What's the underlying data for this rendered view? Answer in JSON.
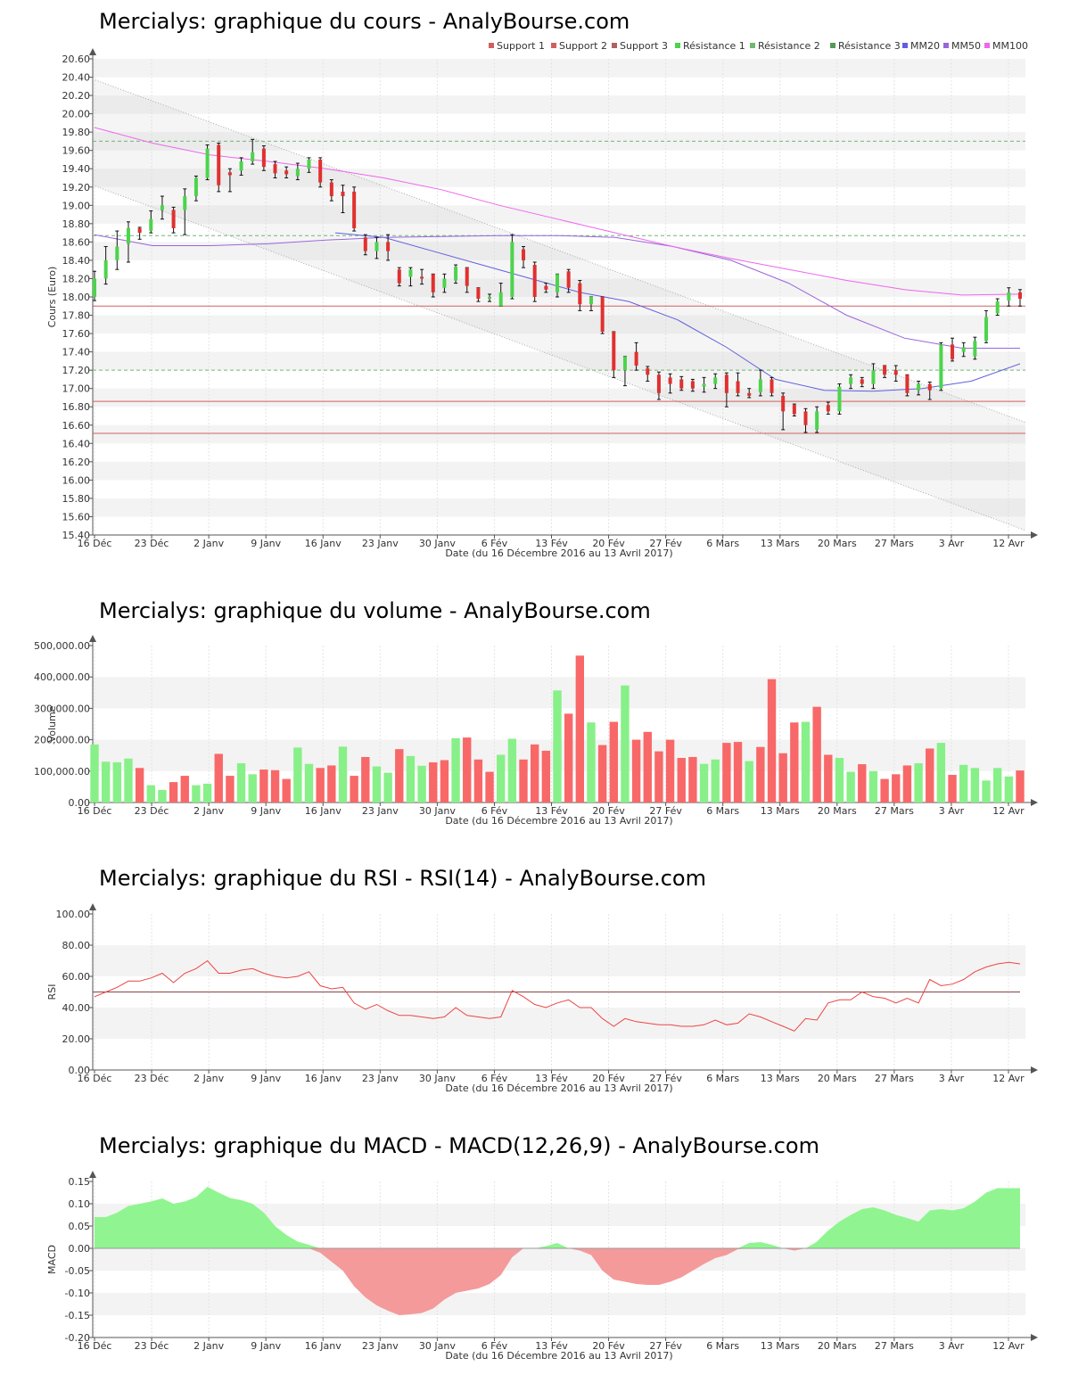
{
  "titles": {
    "price": "Mercialys: graphique du cours - AnalyBourse.com",
    "volume": "Mercialys: graphique du volume - AnalyBourse.com",
    "rsi": "Mercialys: graphique du RSI - RSI(14) - AnalyBourse.com",
    "macd": "Mercialys: graphique du MACD - MACD(12,26,9) - AnalyBourse.com"
  },
  "xlabel": "Date (du 16 Décembre 2016 au 13 Avril 2017)",
  "xticks": [
    "16 Déc",
    "23 Déc",
    "2 Janv",
    "9 Janv",
    "16 Janv",
    "23 Janv",
    "30 Janv",
    "6 Fév",
    "13 Fév",
    "20 Fév",
    "27 Fév",
    "6 Mars",
    "13 Mars",
    "20 Mars",
    "27 Mars",
    "3 Avr",
    "12 Avr"
  ],
  "colors": {
    "up": "#4cd44c",
    "down": "#e03030",
    "vol_up": "#88f088",
    "vol_down": "#f86868",
    "support": "#d06060",
    "resistance": "#70b870",
    "mm20": "#6060e0",
    "mm50": "#9966dd",
    "mm100": "#ee66ee",
    "rsi": "#ee4444",
    "macd_pos": "#90f590",
    "macd_neg": "#f49a9a"
  },
  "chart_data": [
    {
      "id": "price",
      "type": "candlestick",
      "title": "Mercialys: graphique du cours - AnalyBourse.com",
      "ylabel": "Cours (Euro)",
      "xlabel": "Date (du 16 Décembre 2016 au 13 Avril 2017)",
      "ylim": [
        15.4,
        20.6
      ],
      "yticks": [
        "15.40",
        "15.60",
        "15.80",
        "16.00",
        "16.20",
        "16.40",
        "16.60",
        "16.80",
        "17.00",
        "17.20",
        "17.40",
        "17.60",
        "17.80",
        "18.00",
        "18.20",
        "18.40",
        "18.60",
        "18.80",
        "19.00",
        "19.20",
        "19.40",
        "19.60",
        "19.80",
        "20.00",
        "20.20",
        "20.40",
        "20.60"
      ],
      "legend": [
        "Support 1",
        "Support 2",
        "Support 3",
        "Résistance 1",
        "Résistance 2",
        "Résistance 3",
        "MM20",
        "MM50",
        "MM100"
      ],
      "legend_position": "top-right",
      "levels": {
        "support": [
          17.9,
          16.86,
          16.51
        ],
        "resistance": [
          17.2,
          18.67,
          19.7
        ]
      },
      "channel": {
        "upper": [
          20.38,
          16.63
        ],
        "lower": [
          19.22,
          15.45
        ]
      },
      "candles": [
        [
          18.0,
          18.2,
          18.28,
          17.96
        ],
        [
          18.2,
          18.4,
          18.55,
          18.14
        ],
        [
          18.4,
          18.55,
          18.72,
          18.3
        ],
        [
          18.58,
          18.75,
          18.82,
          18.38
        ],
        [
          18.75,
          18.7,
          18.76,
          18.63
        ],
        [
          18.72,
          18.85,
          18.94,
          18.7
        ],
        [
          18.95,
          19.0,
          19.1,
          18.85
        ],
        [
          18.95,
          18.75,
          18.98,
          18.7
        ],
        [
          18.95,
          19.1,
          19.18,
          18.68
        ],
        [
          19.1,
          19.3,
          19.32,
          19.05
        ],
        [
          19.3,
          19.62,
          19.66,
          19.28
        ],
        [
          19.66,
          19.22,
          19.68,
          19.15
        ],
        [
          19.36,
          19.33,
          19.4,
          19.15
        ],
        [
          19.38,
          19.48,
          19.52,
          19.33
        ],
        [
          19.48,
          19.58,
          19.72,
          19.45
        ],
        [
          19.62,
          19.42,
          19.65,
          19.38
        ],
        [
          19.45,
          19.35,
          19.48,
          19.3
        ],
        [
          19.38,
          19.34,
          19.42,
          19.3
        ],
        [
          19.32,
          19.4,
          19.46,
          19.28
        ],
        [
          19.4,
          19.5,
          19.52,
          19.36
        ],
        [
          19.5,
          19.25,
          19.52,
          19.2
        ],
        [
          19.25,
          19.1,
          19.28,
          19.05
        ],
        [
          19.15,
          19.1,
          19.22,
          18.92
        ],
        [
          19.15,
          18.75,
          19.2,
          18.72
        ],
        [
          18.65,
          18.5,
          18.68,
          18.46
        ],
        [
          18.5,
          18.6,
          18.65,
          18.42
        ],
        [
          18.6,
          18.5,
          18.68,
          18.4
        ],
        [
          18.3,
          18.15,
          18.32,
          18.12
        ],
        [
          18.22,
          18.3,
          18.32,
          18.12
        ],
        [
          18.22,
          18.2,
          18.3,
          18.14
        ],
        [
          18.25,
          18.05,
          18.25,
          18.0
        ],
        [
          18.1,
          18.2,
          18.25,
          18.05
        ],
        [
          18.18,
          18.33,
          18.35,
          18.15
        ],
        [
          18.32,
          18.12,
          18.32,
          18.05
        ],
        [
          18.1,
          17.98,
          18.1,
          17.95
        ],
        [
          17.98,
          18.0,
          18.03,
          17.95
        ],
        [
          17.9,
          18.05,
          18.15,
          17.9
        ],
        [
          18.0,
          18.6,
          18.68,
          17.98
        ],
        [
          18.52,
          18.4,
          18.55,
          18.32
        ],
        [
          18.35,
          18.0,
          18.38,
          17.95
        ],
        [
          18.12,
          18.08,
          18.15,
          18.05
        ],
        [
          18.05,
          18.25,
          18.25,
          18.0
        ],
        [
          18.28,
          18.1,
          18.3,
          18.05
        ],
        [
          18.15,
          17.92,
          18.18,
          17.85
        ],
        [
          17.92,
          18.0,
          18.0,
          17.85
        ],
        [
          18.0,
          17.62,
          18.0,
          17.6
        ],
        [
          17.62,
          17.2,
          17.62,
          17.12
        ],
        [
          17.2,
          17.35,
          17.35,
          17.03
        ],
        [
          17.4,
          17.25,
          17.5,
          17.2
        ],
        [
          17.22,
          17.15,
          17.24,
          17.08
        ],
        [
          17.15,
          16.95,
          17.18,
          16.88
        ],
        [
          17.12,
          17.05,
          17.16,
          16.95
        ],
        [
          17.1,
          17.0,
          17.13,
          16.98
        ],
        [
          17.08,
          17.0,
          17.1,
          16.97
        ],
        [
          17.02,
          17.05,
          17.12,
          16.96
        ],
        [
          17.05,
          17.12,
          17.16,
          17.0
        ],
        [
          17.15,
          16.95,
          17.17,
          16.8
        ],
        [
          17.08,
          16.95,
          17.17,
          16.92
        ],
        [
          16.95,
          16.92,
          17.0,
          16.9
        ],
        [
          16.96,
          17.1,
          17.2,
          16.92
        ],
        [
          17.1,
          16.95,
          17.12,
          16.92
        ],
        [
          16.92,
          16.75,
          16.95,
          16.55
        ],
        [
          16.82,
          16.72,
          16.83,
          16.7
        ],
        [
          16.75,
          16.6,
          16.78,
          16.52
        ],
        [
          16.55,
          16.75,
          16.8,
          16.52
        ],
        [
          16.82,
          16.75,
          16.85,
          16.72
        ],
        [
          16.75,
          17.02,
          17.05,
          16.72
        ],
        [
          17.05,
          17.12,
          17.15,
          17.0
        ],
        [
          17.1,
          17.05,
          17.12,
          17.02
        ],
        [
          17.05,
          17.2,
          17.27,
          17.0
        ],
        [
          17.25,
          17.15,
          17.25,
          17.12
        ],
        [
          17.2,
          17.15,
          17.25,
          17.08
        ],
        [
          17.15,
          16.95,
          17.15,
          16.92
        ],
        [
          16.98,
          17.05,
          17.08,
          16.93
        ],
        [
          17.05,
          16.98,
          17.07,
          16.88
        ],
        [
          17.0,
          17.48,
          17.5,
          16.98
        ],
        [
          17.48,
          17.32,
          17.55,
          17.3
        ],
        [
          17.4,
          17.45,
          17.5,
          17.35
        ],
        [
          17.35,
          17.52,
          17.56,
          17.32
        ],
        [
          17.52,
          17.78,
          17.85,
          17.5
        ],
        [
          17.82,
          17.95,
          17.98,
          17.8
        ],
        [
          17.96,
          18.05,
          18.1,
          17.9
        ],
        [
          18.05,
          17.98,
          18.08,
          17.9
        ]
      ],
      "mm20": [
        18.7,
        18.65,
        18.5,
        18.35,
        18.2,
        18.05,
        17.95,
        17.75,
        17.45,
        17.1,
        16.98,
        16.97,
        17.0,
        17.08,
        17.27
      ],
      "mm50": [
        18.68,
        18.56,
        18.56,
        18.58,
        18.62,
        18.65,
        18.66,
        18.67,
        18.67,
        18.65,
        18.55,
        18.4,
        18.15,
        17.8,
        17.55,
        17.44,
        17.44
      ],
      "mm100": [
        19.85,
        19.68,
        19.55,
        19.48,
        19.4,
        19.3,
        19.17,
        19.0,
        18.85,
        18.7,
        18.55,
        18.42,
        18.3,
        18.18,
        18.08,
        18.02,
        18.03
      ]
    },
    {
      "id": "volume",
      "type": "bar",
      "title": "Mercialys: graphique du volume - AnalyBourse.com",
      "ylabel": "Volume",
      "xlabel": "Date (du 16 Décembre 2016 au 13 Avril 2017)",
      "ylim": [
        0,
        500000
      ],
      "yticks": [
        "0.00",
        "100,000.00",
        "200,000.00",
        "300,000.00",
        "400,000.00",
        "500,000.00"
      ],
      "values": [
        185000,
        130000,
        128000,
        140000,
        110000,
        55000,
        40000,
        65000,
        85000,
        55000,
        60000,
        155000,
        85000,
        125000,
        90000,
        105000,
        103000,
        75000,
        175000,
        123000,
        110000,
        118000,
        178000,
        85000,
        145000,
        115000,
        95000,
        170000,
        148000,
        117000,
        128000,
        135000,
        205000,
        207000,
        137000,
        98000,
        152000,
        203000,
        137000,
        185000,
        165000,
        357000,
        283000,
        468000,
        255000,
        183000,
        257000,
        373000,
        200000,
        225000,
        163000,
        200000,
        142000,
        145000,
        123000,
        137000,
        190000,
        193000,
        132000,
        177000,
        393000,
        157000,
        255000,
        257000,
        305000,
        152000,
        142000,
        98000,
        122000,
        100000,
        75000,
        90000,
        118000,
        125000,
        172000,
        190000,
        88000,
        120000,
        110000,
        70000,
        110000,
        83000,
        102000
      ],
      "up": [
        1,
        1,
        1,
        1,
        0,
        1,
        1,
        0,
        0,
        1,
        1,
        0,
        0,
        1,
        1,
        0,
        0,
        0,
        1,
        1,
        0,
        0,
        1,
        0,
        0,
        1,
        1,
        0,
        1,
        1,
        0,
        0,
        1,
        0,
        0,
        0,
        1,
        1,
        0,
        0,
        0,
        1,
        0,
        0,
        1,
        0,
        0,
        1,
        0,
        0,
        0,
        0,
        0,
        0,
        1,
        1,
        0,
        0,
        1,
        0,
        0,
        0,
        0,
        1,
        0,
        0,
        1,
        1,
        0,
        1,
        0,
        0,
        0,
        1,
        0,
        1,
        0,
        1,
        1,
        1,
        1,
        1,
        0
      ]
    },
    {
      "id": "rsi",
      "type": "line",
      "title": "Mercialys: graphique du RSI - RSI(14) - AnalyBourse.com",
      "ylabel": "RSI",
      "xlabel": "Date (du 16 Décembre 2016 au 13 Avril 2017)",
      "ylim": [
        0,
        100
      ],
      "yticks": [
        "0.00",
        "20.00",
        "40.00",
        "60.00",
        "80.00",
        "100.00"
      ],
      "reference": 50,
      "values": [
        47,
        50,
        53,
        57,
        57,
        59,
        62,
        56,
        62,
        65,
        70,
        62,
        62,
        64,
        65,
        62,
        60,
        59,
        60,
        63,
        54,
        52,
        53,
        43,
        39,
        42,
        38,
        35,
        35,
        34,
        33,
        34,
        40,
        35,
        34,
        33,
        34,
        51,
        47,
        42,
        40,
        43,
        45,
        40,
        40,
        33,
        28,
        33,
        31,
        30,
        29,
        29,
        28,
        28,
        29,
        32,
        29,
        30,
        36,
        34,
        31,
        28,
        25,
        33,
        32,
        43,
        45,
        45,
        50,
        47,
        46,
        43,
        46,
        43,
        58,
        54,
        55,
        58,
        63,
        66,
        68,
        69,
        68
      ]
    },
    {
      "id": "macd",
      "type": "area",
      "title": "Mercialys: graphique du MACD - MACD(12,26,9) - AnalyBourse.com",
      "ylabel": "MACD",
      "xlabel": "Date (du 16 Décembre 2016 au 13 Avril 2017)",
      "ylim": [
        -0.2,
        0.15
      ],
      "yticks": [
        "-0.20",
        "-0.15",
        "-0.10",
        "-0.05",
        "0.00",
        "0.05",
        "0.10",
        "0.15"
      ],
      "values": [
        0.07,
        0.07,
        0.08,
        0.095,
        0.1,
        0.105,
        0.112,
        0.1,
        0.105,
        0.115,
        0.138,
        0.125,
        0.113,
        0.108,
        0.1,
        0.08,
        0.05,
        0.03,
        0.015,
        0.008,
        -0.01,
        -0.03,
        -0.05,
        -0.085,
        -0.11,
        -0.128,
        -0.14,
        -0.15,
        -0.148,
        -0.145,
        -0.135,
        -0.115,
        -0.1,
        -0.095,
        -0.09,
        -0.08,
        -0.06,
        -0.02,
        0.0,
        0.0,
        0.005,
        0.012,
        0.0,
        -0.005,
        -0.015,
        -0.05,
        -0.07,
        -0.075,
        -0.08,
        -0.082,
        -0.082,
        -0.075,
        -0.065,
        -0.05,
        -0.035,
        -0.022,
        -0.015,
        -0.002,
        0.012,
        0.014,
        0.008,
        0.0,
        -0.005,
        0.0,
        0.015,
        0.04,
        0.06,
        0.075,
        0.088,
        0.092,
        0.085,
        0.075,
        0.068,
        0.06,
        0.085,
        0.088,
        0.085,
        0.09,
        0.105,
        0.125,
        0.135,
        0.135,
        0.135
      ]
    }
  ]
}
